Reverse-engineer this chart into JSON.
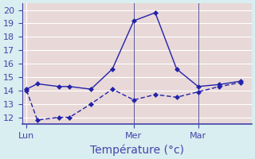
{
  "line1_x": [
    0,
    0.5,
    1.5,
    2,
    3,
    4,
    5,
    6,
    7,
    8,
    9,
    10
  ],
  "line1_y": [
    14.1,
    14.5,
    14.3,
    14.3,
    14.1,
    15.6,
    19.2,
    19.8,
    15.6,
    14.3,
    14.45,
    14.7
  ],
  "line2_x": [
    0,
    0.5,
    1.5,
    2,
    3,
    4,
    5,
    6,
    7,
    8,
    9,
    10
  ],
  "line2_y": [
    14.0,
    11.8,
    12.0,
    12.0,
    13.0,
    14.1,
    13.3,
    13.7,
    13.5,
    13.9,
    14.3,
    14.6
  ],
  "line1_color": "#2222aa",
  "line2_color": "#2222aa",
  "bg_color": "#d8eef0",
  "plot_bg": "#e8d8d8",
  "grid_color": "#ffffff",
  "axes_color": "#4444aa",
  "ylim": [
    11.5,
    20.5
  ],
  "yticks": [
    12,
    13,
    14,
    15,
    16,
    17,
    18,
    19,
    20
  ],
  "xlim": [
    -0.2,
    10.5
  ],
  "xtick_positions": [
    0,
    5,
    8
  ],
  "xtick_labels": [
    "Lun",
    "Mer",
    "Mar"
  ],
  "vline_positions": [
    5,
    8
  ],
  "xlabel": "Température (°c)",
  "xlabel_fontsize": 10,
  "tick_fontsize": 8,
  "line_width": 1.0,
  "marker": "D",
  "marker_size": 3
}
